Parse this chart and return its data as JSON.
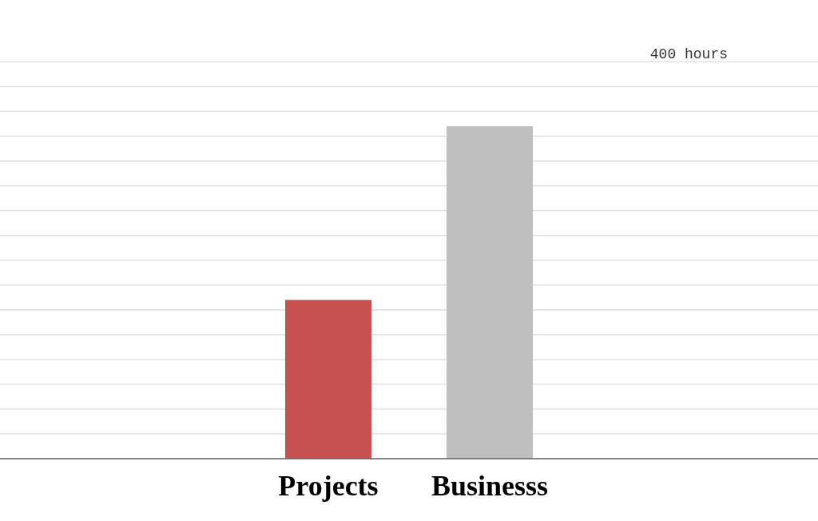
{
  "chart_data": {
    "type": "bar",
    "categories": [
      "Projects",
      "Businesss"
    ],
    "values": [
      160,
      335
    ],
    "colors": [
      "#c75050",
      "#bfbfbf"
    ],
    "ylim": [
      0,
      400
    ],
    "yticks": [
      {
        "value": 0,
        "label": null
      },
      {
        "value": 25,
        "label": null
      },
      {
        "value": 50,
        "label": null
      },
      {
        "value": 75,
        "label": null
      },
      {
        "value": 100,
        "label": null
      },
      {
        "value": 125,
        "label": null
      },
      {
        "value": 150,
        "label": null
      },
      {
        "value": 175,
        "label": null
      },
      {
        "value": 200,
        "label": null
      },
      {
        "value": 225,
        "label": null
      },
      {
        "value": 250,
        "label": null
      },
      {
        "value": 275,
        "label": null
      },
      {
        "value": 300,
        "label": null
      },
      {
        "value": 325,
        "label": null
      },
      {
        "value": 350,
        "label": null
      },
      {
        "value": 375,
        "label": null
      },
      {
        "value": 400,
        "label": "400 hours"
      }
    ],
    "grid": "y"
  }
}
